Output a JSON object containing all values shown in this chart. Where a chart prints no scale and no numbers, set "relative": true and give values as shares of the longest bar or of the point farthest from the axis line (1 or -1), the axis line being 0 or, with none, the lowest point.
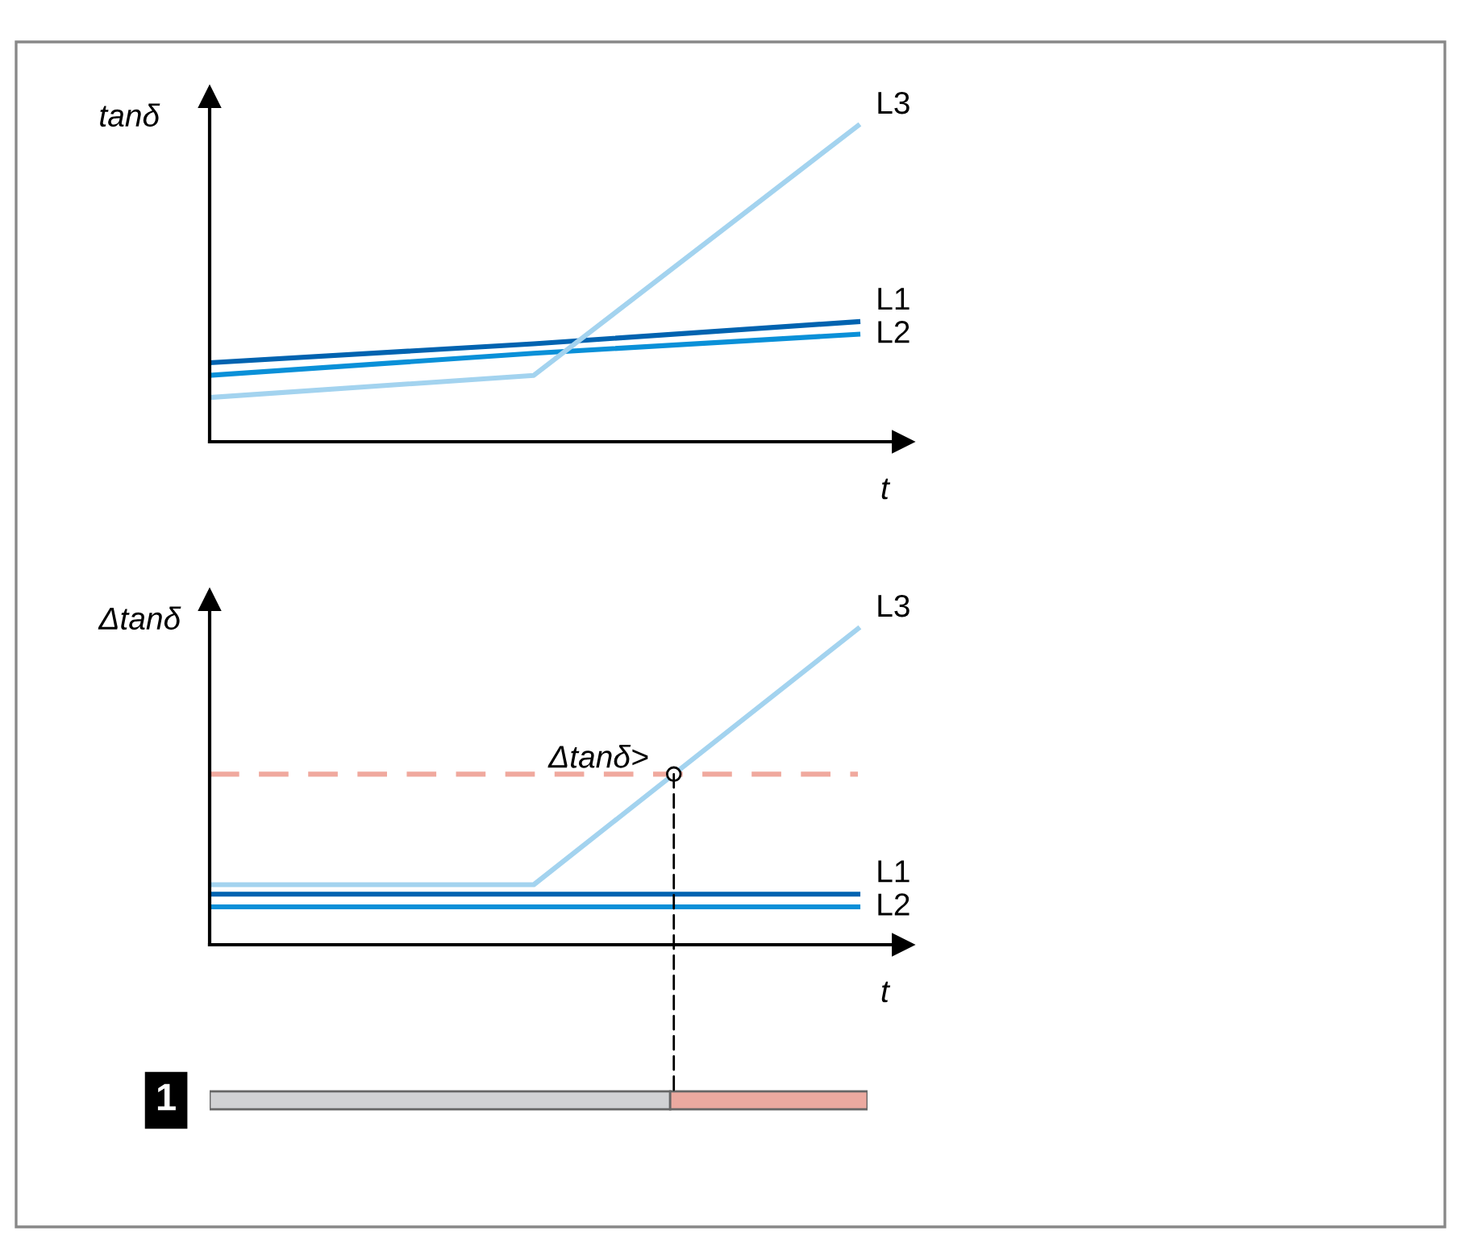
{
  "chart_data": [
    {
      "type": "line",
      "relative": true,
      "ylabel": "tanδ",
      "xlabel": "t",
      "categories": [
        null,
        null,
        null
      ],
      "legend": false,
      "grid": false,
      "line_style": "solid",
      "marker": "none",
      "series": [
        {
          "name": "L1",
          "color": "#0063b0",
          "values": [
            0.25,
            0.31,
            0.38
          ]
        },
        {
          "name": "L2",
          "color": "#0a90d8",
          "values": [
            0.21,
            0.28,
            0.34
          ]
        },
        {
          "name": "L3",
          "color": "#a3d3ef",
          "values": [
            0.14,
            0.21,
            1
          ]
        }
      ]
    },
    {
      "type": "line",
      "relative": true,
      "ylabel": "Δtanδ",
      "xlabel": "t",
      "categories": [
        null,
        null,
        null
      ],
      "legend": false,
      "grid": false,
      "line_style": "solid",
      "marker": "none",
      "series": [
        {
          "name": "L1",
          "color": "#0063b0",
          "values": [
            0.16,
            0.16,
            0.16
          ]
        },
        {
          "name": "L2",
          "color": "#0a90d8",
          "values": [
            0.12,
            0.12,
            0.12
          ]
        },
        {
          "name": "L3",
          "color": "#a3d3ef",
          "values": [
            0.19,
            0.19,
            1
          ]
        }
      ],
      "ref_lines": [
        {
          "axis": "y",
          "value": 0.54,
          "label": "Δtanδ>",
          "color": "#f0a99e",
          "line_style": "dashed"
        }
      ]
    },
    {
      "type": "bar",
      "relative": true,
      "orientation": "horizontal",
      "stacked": true,
      "categories": [
        "1"
      ],
      "grid": false,
      "series": [
        {
          "color": "#d1d2d4",
          "values": [
            0.7
          ]
        },
        {
          "color": "#eba9a0",
          "values": [
            0.3
          ]
        }
      ]
    }
  ]
}
